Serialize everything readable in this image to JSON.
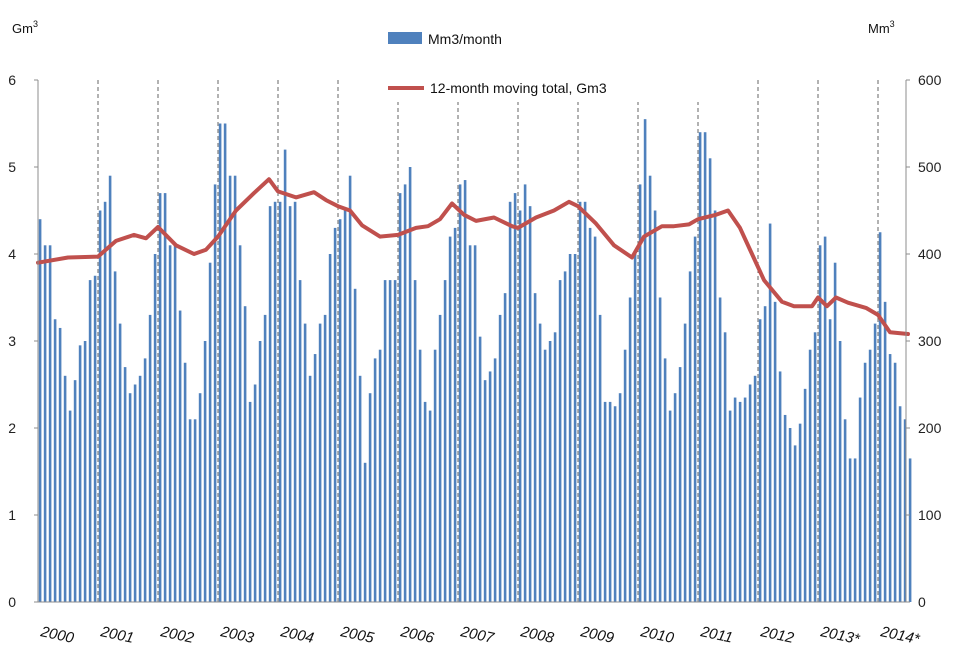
{
  "chart_data": {
    "type": "bar",
    "left_axis_unit": {
      "base": "Gm",
      "sup": "3"
    },
    "right_axis_unit": {
      "base": "Mm",
      "sup": "3"
    },
    "left_ylim": [
      0,
      6
    ],
    "right_ylim": [
      0,
      600
    ],
    "left_ticks": [
      "0",
      "1",
      "2",
      "3",
      "4",
      "5",
      "6"
    ],
    "right_ticks": [
      "0",
      "100",
      "200",
      "300",
      "400",
      "500",
      "600"
    ],
    "year_labels": [
      "2000",
      "2001",
      "2002",
      "2003",
      "2004",
      "2005",
      "2006",
      "2007",
      "2008",
      "2009",
      "2010",
      "2011",
      "2012",
      "2013*",
      "2014*"
    ],
    "grid": "vertical dashed lines at year boundaries",
    "legend_placement": "top-center",
    "colors": {
      "bars": "#4f81bd",
      "line": "#c0504d"
    },
    "series": [
      {
        "name": "Mm3/month",
        "kind": "bar",
        "axis": "right",
        "values": [
          440,
          410,
          410,
          325,
          315,
          260,
          220,
          255,
          295,
          300,
          370,
          375,
          450,
          460,
          490,
          380,
          320,
          270,
          240,
          250,
          260,
          280,
          330,
          400,
          470,
          470,
          410,
          410,
          335,
          275,
          210,
          210,
          240,
          300,
          390,
          480,
          550,
          550,
          490,
          490,
          410,
          340,
          230,
          250,
          300,
          330,
          455,
          460,
          460,
          520,
          455,
          460,
          370,
          320,
          260,
          285,
          320,
          330,
          400,
          430,
          440,
          450,
          490,
          360,
          260,
          160,
          240,
          280,
          290,
          370,
          370,
          370,
          470,
          480,
          500,
          370,
          290,
          230,
          220,
          290,
          330,
          370,
          420,
          430,
          480,
          485,
          410,
          410,
          305,
          255,
          265,
          280,
          330,
          355,
          460,
          470,
          450,
          480,
          455,
          355,
          320,
          290,
          300,
          310,
          370,
          380,
          400,
          400,
          460,
          460,
          430,
          420,
          330,
          230,
          230,
          225,
          240,
          290,
          350,
          400,
          480,
          555,
          490,
          450,
          350,
          280,
          220,
          240,
          270,
          320,
          380,
          420,
          540,
          540,
          510,
          450,
          350,
          310,
          220,
          235,
          230,
          235,
          250,
          260,
          325,
          340,
          435,
          345,
          265,
          215,
          200,
          180,
          205,
          245,
          290,
          310,
          410,
          420,
          325,
          390,
          300,
          210,
          165,
          165,
          235,
          275,
          290,
          320,
          425,
          345,
          285,
          275,
          225,
          210,
          165
        ]
      },
      {
        "name": "12-month moving total,  Gm3",
        "kind": "line",
        "axis": "left",
        "points": [
          [
            2000.0,
            3.9
          ],
          [
            2000.5,
            3.96
          ],
          [
            2001.0,
            3.97
          ],
          [
            2001.3,
            4.15
          ],
          [
            2001.6,
            4.22
          ],
          [
            2001.8,
            4.18
          ],
          [
            2002.0,
            4.31
          ],
          [
            2002.3,
            4.1
          ],
          [
            2002.6,
            4.0
          ],
          [
            2002.8,
            4.05
          ],
          [
            2003.0,
            4.2
          ],
          [
            2003.3,
            4.5
          ],
          [
            2003.6,
            4.7
          ],
          [
            2003.85,
            4.86
          ],
          [
            2004.0,
            4.72
          ],
          [
            2004.3,
            4.65
          ],
          [
            2004.6,
            4.71
          ],
          [
            2004.8,
            4.62
          ],
          [
            2005.0,
            4.55
          ],
          [
            2005.2,
            4.5
          ],
          [
            2005.4,
            4.33
          ],
          [
            2005.7,
            4.2
          ],
          [
            2006.0,
            4.22
          ],
          [
            2006.3,
            4.3
          ],
          [
            2006.5,
            4.32
          ],
          [
            2006.7,
            4.4
          ],
          [
            2006.9,
            4.58
          ],
          [
            2007.1,
            4.45
          ],
          [
            2007.3,
            4.38
          ],
          [
            2007.6,
            4.42
          ],
          [
            2007.9,
            4.32
          ],
          [
            2008.0,
            4.3
          ],
          [
            2008.3,
            4.42
          ],
          [
            2008.6,
            4.5
          ],
          [
            2008.85,
            4.6
          ],
          [
            2009.0,
            4.55
          ],
          [
            2009.3,
            4.35
          ],
          [
            2009.6,
            4.1
          ],
          [
            2009.9,
            3.96
          ],
          [
            2010.1,
            4.2
          ],
          [
            2010.4,
            4.32
          ],
          [
            2010.6,
            4.32
          ],
          [
            2010.85,
            4.34
          ],
          [
            2011.0,
            4.4
          ],
          [
            2011.3,
            4.45
          ],
          [
            2011.5,
            4.5
          ],
          [
            2011.7,
            4.3
          ],
          [
            2011.9,
            4.0
          ],
          [
            2012.1,
            3.7
          ],
          [
            2012.4,
            3.45
          ],
          [
            2012.6,
            3.4
          ],
          [
            2012.9,
            3.4
          ],
          [
            2013.0,
            3.5
          ],
          [
            2013.15,
            3.4
          ],
          [
            2013.3,
            3.5
          ],
          [
            2013.5,
            3.44
          ],
          [
            2013.8,
            3.38
          ],
          [
            2014.0,
            3.3
          ],
          [
            2014.2,
            3.1
          ],
          [
            2014.5,
            3.08
          ]
        ]
      }
    ]
  }
}
